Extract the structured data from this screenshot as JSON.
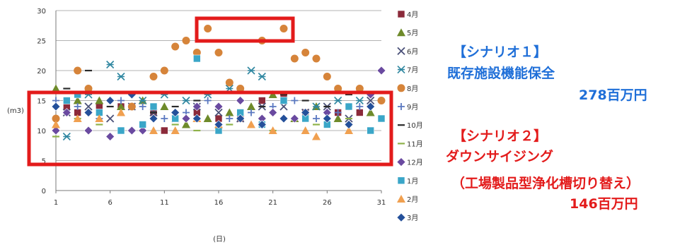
{
  "chart_data": {
    "type": "scatter",
    "xlabel": "(日)",
    "ylabel": "(m3)",
    "xlim": [
      1,
      31
    ],
    "ylim": [
      0,
      30
    ],
    "xticks": [
      1,
      6,
      11,
      16,
      21,
      26,
      31
    ],
    "yticks": [
      0,
      5,
      10,
      15,
      20,
      25,
      30
    ],
    "grid": "horizontal",
    "legend": "right",
    "series": [
      {
        "name": "4月",
        "marker": "square",
        "color": "#8b2a3a",
        "points": [
          [
            2,
            14
          ],
          [
            3,
            13
          ],
          [
            5,
            14
          ],
          [
            7,
            14
          ],
          [
            10,
            13
          ],
          [
            11,
            10
          ],
          [
            12,
            12
          ],
          [
            14,
            13
          ],
          [
            16,
            12
          ],
          [
            18,
            12
          ],
          [
            20,
            15
          ],
          [
            22,
            16
          ],
          [
            24,
            13
          ],
          [
            27,
            13
          ],
          [
            29,
            13
          ]
        ]
      },
      {
        "name": "5月",
        "marker": "triangle",
        "color": "#6e8a2a",
        "points": [
          [
            1,
            17
          ],
          [
            3,
            15
          ],
          [
            5,
            15
          ],
          [
            7,
            14
          ],
          [
            9,
            15
          ],
          [
            11,
            14
          ],
          [
            13,
            11
          ],
          [
            15,
            12
          ],
          [
            17,
            13
          ],
          [
            19,
            14
          ],
          [
            21,
            16
          ],
          [
            23,
            12
          ],
          [
            25,
            14
          ],
          [
            27,
            12
          ],
          [
            30,
            13
          ]
        ]
      },
      {
        "name": "6月",
        "marker": "x",
        "color": "#4a5078",
        "points": [
          [
            2,
            13
          ],
          [
            4,
            14
          ],
          [
            6,
            12
          ],
          [
            8,
            14
          ],
          [
            10,
            13
          ],
          [
            12,
            12
          ],
          [
            14,
            14
          ],
          [
            16,
            13
          ],
          [
            18,
            12
          ],
          [
            20,
            14
          ],
          [
            22,
            14
          ],
          [
            24,
            13
          ],
          [
            26,
            14
          ],
          [
            28,
            12
          ],
          [
            30,
            15
          ]
        ]
      },
      {
        "name": "7月",
        "marker": "star",
        "color": "#2e86a0",
        "points": [
          [
            2,
            9
          ],
          [
            4,
            16
          ],
          [
            6,
            21
          ],
          [
            7,
            19
          ],
          [
            9,
            15
          ],
          [
            11,
            16
          ],
          [
            13,
            15
          ],
          [
            15,
            16
          ],
          [
            17,
            17
          ],
          [
            19,
            20
          ],
          [
            20,
            19
          ],
          [
            22,
            15
          ],
          [
            25,
            14
          ],
          [
            27,
            15
          ],
          [
            29,
            15
          ]
        ]
      },
      {
        "name": "8月",
        "marker": "circle",
        "color": "#d6843a",
        "points": [
          [
            1,
            12
          ],
          [
            3,
            20
          ],
          [
            4,
            17
          ],
          [
            8,
            14
          ],
          [
            10,
            19
          ],
          [
            11,
            20
          ],
          [
            12,
            24
          ],
          [
            13,
            25
          ],
          [
            14,
            23
          ],
          [
            15,
            27
          ],
          [
            16,
            23
          ],
          [
            17,
            18
          ],
          [
            18,
            17
          ],
          [
            20,
            25
          ],
          [
            22,
            27
          ],
          [
            23,
            22
          ],
          [
            24,
            23
          ],
          [
            25,
            22
          ],
          [
            26,
            19
          ],
          [
            27,
            17
          ],
          [
            29,
            17
          ],
          [
            31,
            15
          ]
        ]
      },
      {
        "name": "9月",
        "marker": "plus",
        "color": "#5a78c0",
        "points": [
          [
            1,
            15
          ],
          [
            3,
            14
          ],
          [
            5,
            12
          ],
          [
            7,
            15
          ],
          [
            9,
            14
          ],
          [
            11,
            12
          ],
          [
            13,
            13
          ],
          [
            15,
            15
          ],
          [
            17,
            12
          ],
          [
            19,
            13
          ],
          [
            21,
            14
          ],
          [
            23,
            15
          ],
          [
            25,
            12
          ],
          [
            27,
            13
          ],
          [
            29,
            14
          ]
        ]
      },
      {
        "name": "10月",
        "marker": "dash",
        "color": "#2a2a2a",
        "points": [
          [
            2,
            17
          ],
          [
            4,
            20
          ],
          [
            6,
            14
          ],
          [
            8,
            16
          ],
          [
            10,
            13
          ],
          [
            12,
            14
          ],
          [
            14,
            15
          ],
          [
            16,
            14
          ],
          [
            18,
            15
          ],
          [
            20,
            14
          ],
          [
            22,
            16
          ],
          [
            24,
            15
          ],
          [
            26,
            14
          ],
          [
            28,
            16
          ],
          [
            30,
            14
          ]
        ]
      },
      {
        "name": "11月",
        "marker": "dash",
        "color": "#8fb24a",
        "points": [
          [
            1,
            9
          ],
          [
            3,
            12
          ],
          [
            5,
            11
          ],
          [
            8,
            10
          ],
          [
            12,
            11
          ],
          [
            14,
            10
          ],
          [
            17,
            11
          ],
          [
            21,
            10
          ],
          [
            25,
            11
          ],
          [
            28,
            12
          ],
          [
            31,
            12
          ]
        ]
      },
      {
        "name": "12月",
        "marker": "diamond",
        "color": "#6a4aa0",
        "points": [
          [
            1,
            10
          ],
          [
            2,
            13
          ],
          [
            4,
            10
          ],
          [
            6,
            9
          ],
          [
            8,
            10
          ],
          [
            9,
            10
          ],
          [
            10,
            12
          ],
          [
            12,
            13
          ],
          [
            13,
            12
          ],
          [
            14,
            14
          ],
          [
            16,
            14
          ],
          [
            18,
            15
          ],
          [
            20,
            12
          ],
          [
            21,
            13
          ],
          [
            23,
            12
          ],
          [
            26,
            13
          ],
          [
            28,
            14
          ],
          [
            30,
            16
          ],
          [
            31,
            20
          ]
        ]
      },
      {
        "name": "1月",
        "marker": "square",
        "color": "#3aa6c8",
        "points": [
          [
            2,
            15
          ],
          [
            3,
            16
          ],
          [
            5,
            13
          ],
          [
            7,
            10
          ],
          [
            9,
            11
          ],
          [
            10,
            14
          ],
          [
            12,
            12
          ],
          [
            14,
            22
          ],
          [
            16,
            10
          ],
          [
            18,
            13
          ],
          [
            20,
            11
          ],
          [
            22,
            15
          ],
          [
            24,
            12
          ],
          [
            26,
            11
          ],
          [
            28,
            14
          ],
          [
            30,
            10
          ],
          [
            31,
            12
          ]
        ]
      },
      {
        "name": "2月",
        "marker": "triangle",
        "color": "#f0a050",
        "points": [
          [
            1,
            11
          ],
          [
            3,
            12
          ],
          [
            5,
            12
          ],
          [
            7,
            13
          ],
          [
            10,
            10
          ],
          [
            12,
            10
          ],
          [
            14,
            12
          ],
          [
            16,
            11
          ],
          [
            19,
            11
          ],
          [
            21,
            10
          ],
          [
            24,
            10
          ],
          [
            25,
            9
          ],
          [
            28,
            10
          ]
        ]
      },
      {
        "name": "3月",
        "marker": "diamond",
        "color": "#24509a",
        "points": [
          [
            1,
            14
          ],
          [
            4,
            13
          ],
          [
            6,
            15
          ],
          [
            8,
            16
          ],
          [
            10,
            12
          ],
          [
            12,
            13
          ],
          [
            14,
            12
          ],
          [
            16,
            11
          ],
          [
            18,
            12
          ],
          [
            20,
            11
          ],
          [
            22,
            12
          ],
          [
            24,
            13
          ],
          [
            26,
            12
          ],
          [
            28,
            11
          ],
          [
            30,
            14
          ]
        ]
      }
    ]
  },
  "panel": {
    "scenario1_title": "【シナリオ１】",
    "scenario1_name": "既存施設機能保全",
    "scenario1_cost": "278百万円",
    "scenario2_title": "【シナリオ２】",
    "scenario2_name": "ダウンサイジング",
    "scenario2_detail": "（工場製品型浄化槽切り替え）",
    "scenario2_cost": "146百万円"
  }
}
